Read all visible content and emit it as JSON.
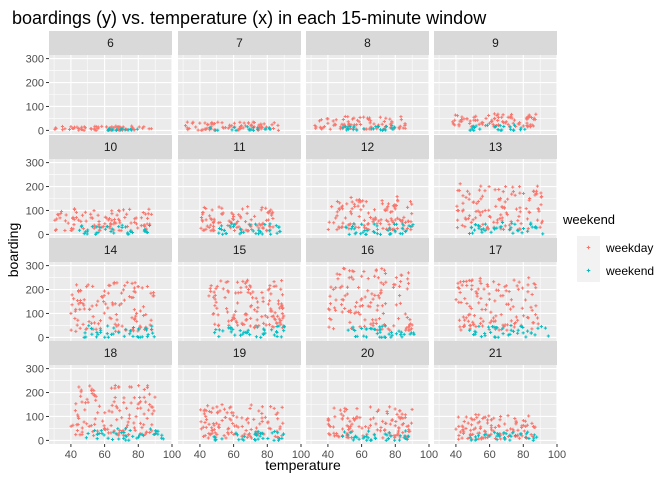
{
  "chart_data": {
    "type": "scatter",
    "title": "boardings (y) vs. temperature (x) in each 15-minute window",
    "xlabel": "temperature",
    "ylabel": "boarding",
    "xlim": [
      27,
      100
    ],
    "ylim": [
      -15,
      315
    ],
    "x_ticks": [
      "40",
      "60",
      "80",
      "100"
    ],
    "y_ticks": [
      "0",
      "100",
      "200",
      "300"
    ],
    "grid": true,
    "legend": {
      "title": "weekend",
      "position": "right",
      "entries": [
        {
          "label": "weekday",
          "color": "#F8766D",
          "marker": "+"
        },
        {
          "label": "weekend",
          "color": "#00BFC4",
          "marker": "+"
        }
      ]
    },
    "facets": [
      {
        "label": "6",
        "wd": {
          "x": [
            30,
            88
          ],
          "y": [
            0,
            18
          ],
          "pts": 70
        },
        "we": {
          "x": [
            60,
            80
          ],
          "y": [
            0,
            8
          ],
          "pts": 15
        }
      },
      {
        "label": "7",
        "wd": {
          "x": [
            30,
            88
          ],
          "y": [
            0,
            35
          ],
          "pts": 75
        },
        "we": {
          "x": [
            45,
            82
          ],
          "y": [
            0,
            15
          ],
          "pts": 20
        }
      },
      {
        "label": "8",
        "wd": {
          "x": [
            32,
            88
          ],
          "y": [
            5,
            60
          ],
          "pts": 85
        },
        "we": {
          "x": [
            45,
            82
          ],
          "y": [
            0,
            20
          ],
          "pts": 25
        }
      },
      {
        "label": "9",
        "wd": {
          "x": [
            38,
            88
          ],
          "y": [
            15,
            70
          ],
          "pts": 90
        },
        "we": {
          "x": [
            48,
            84
          ],
          "y": [
            0,
            25
          ],
          "pts": 25
        }
      },
      {
        "label": "10",
        "wd": {
          "x": [
            30,
            88
          ],
          "y": [
            15,
            110
          ],
          "pts": 100
        },
        "we": {
          "x": [
            45,
            88
          ],
          "y": [
            0,
            40
          ],
          "pts": 35
        }
      },
      {
        "label": "11",
        "wd": {
          "x": [
            40,
            85
          ],
          "y": [
            15,
            120
          ],
          "pts": 100
        },
        "we": {
          "x": [
            48,
            88
          ],
          "y": [
            0,
            45
          ],
          "pts": 35
        }
      },
      {
        "label": "12",
        "wd": {
          "x": [
            40,
            90
          ],
          "y": [
            20,
            160
          ],
          "pts": 120
        },
        "we": {
          "x": [
            48,
            92
          ],
          "y": [
            0,
            45
          ],
          "pts": 40
        }
      },
      {
        "label": "13",
        "wd": {
          "x": [
            40,
            92
          ],
          "y": [
            20,
            215
          ],
          "pts": 120
        },
        "we": {
          "x": [
            48,
            92
          ],
          "y": [
            0,
            50
          ],
          "pts": 40
        }
      },
      {
        "label": "14",
        "wd": {
          "x": [
            40,
            90
          ],
          "y": [
            25,
            230
          ],
          "pts": 120
        },
        "we": {
          "x": [
            45,
            90
          ],
          "y": [
            0,
            50
          ],
          "pts": 40
        }
      },
      {
        "label": "15",
        "wd": {
          "x": [
            45,
            90
          ],
          "y": [
            40,
            240
          ],
          "pts": 130
        },
        "we": {
          "x": [
            48,
            92
          ],
          "y": [
            0,
            50
          ],
          "pts": 40
        }
      },
      {
        "label": "16",
        "wd": {
          "x": [
            40,
            90
          ],
          "y": [
            30,
            290
          ],
          "pts": 130
        },
        "we": {
          "x": [
            48,
            92
          ],
          "y": [
            0,
            50
          ],
          "pts": 40
        }
      },
      {
        "label": "17",
        "wd": {
          "x": [
            40,
            90
          ],
          "y": [
            30,
            250
          ],
          "pts": 130
        },
        "we": {
          "x": [
            48,
            95
          ],
          "y": [
            0,
            50
          ],
          "pts": 40
        }
      },
      {
        "label": "18",
        "wd": {
          "x": [
            40,
            90
          ],
          "y": [
            20,
            230
          ],
          "pts": 130
        },
        "we": {
          "x": [
            48,
            95
          ],
          "y": [
            0,
            50
          ],
          "pts": 40
        }
      },
      {
        "label": "19",
        "wd": {
          "x": [
            40,
            90
          ],
          "y": [
            10,
            150
          ],
          "pts": 120
        },
        "we": {
          "x": [
            48,
            90
          ],
          "y": [
            0,
            40
          ],
          "pts": 35
        }
      },
      {
        "label": "20",
        "wd": {
          "x": [
            40,
            90
          ],
          "y": [
            10,
            140
          ],
          "pts": 120
        },
        "we": {
          "x": [
            48,
            88
          ],
          "y": [
            0,
            40
          ],
          "pts": 35
        }
      },
      {
        "label": "21",
        "wd": {
          "x": [
            40,
            88
          ],
          "y": [
            5,
            110
          ],
          "pts": 110
        },
        "we": {
          "x": [
            48,
            88
          ],
          "y": [
            0,
            35
          ],
          "pts": 35
        }
      }
    ]
  }
}
